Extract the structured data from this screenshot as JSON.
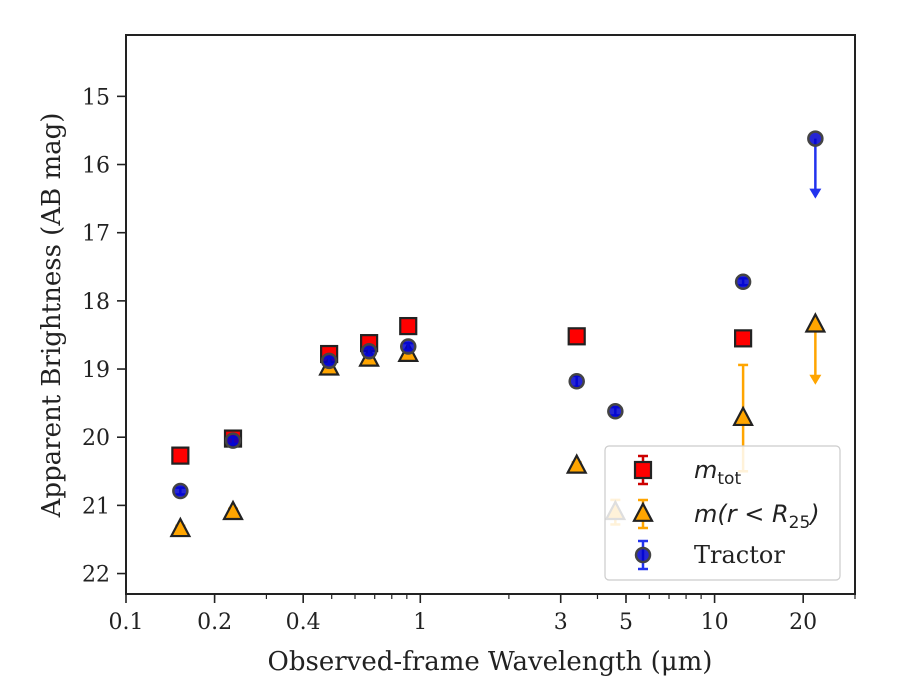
{
  "chart_data": {
    "type": "scatter",
    "title": "",
    "xlabel": "Observed-frame Wavelength (μm)",
    "ylabel": "Apparent Brightness (AB mag)",
    "xscale": "log",
    "xlim": [
      0.1,
      30
    ],
    "ylim": [
      22.3,
      14.1
    ],
    "y_inverted": true,
    "xticks": [
      0.1,
      0.2,
      0.4,
      1,
      3,
      5,
      10,
      20
    ],
    "xtick_labels": [
      "0.1",
      "0.2",
      "0.4",
      "1",
      "3",
      "5",
      "10",
      "20"
    ],
    "yticks": [
      15,
      16,
      17,
      18,
      19,
      20,
      21,
      22
    ],
    "ytick_labels": [
      "15",
      "16",
      "17",
      "18",
      "19",
      "20",
      "21",
      "22"
    ],
    "legend_position": "lower-right",
    "series": [
      {
        "key": "mtot",
        "legend_main": "m",
        "legend_sub": "tot",
        "marker": "square",
        "color": "#ff0000",
        "edge": "#222222",
        "points": [
          {
            "x": 0.153,
            "y": 20.27,
            "err": 0.05
          },
          {
            "x": 0.231,
            "y": 20.02,
            "err": 0.05
          },
          {
            "x": 0.49,
            "y": 18.78,
            "err": 0.05
          },
          {
            "x": 0.67,
            "y": 18.62,
            "err": 0.05
          },
          {
            "x": 0.91,
            "y": 18.37,
            "err": 0.05
          },
          {
            "x": 3.4,
            "y": 18.52,
            "err": 0.05
          },
          {
            "x": 12.5,
            "y": 18.55,
            "err": 0.05
          }
        ]
      },
      {
        "key": "mr25",
        "legend_main": "m(r < R",
        "legend_sub": "25",
        "legend_end": ")",
        "marker": "triangle",
        "color": "#ffa500",
        "edge": "#222222",
        "points": [
          {
            "x": 0.153,
            "y": 21.35,
            "err": 0.05
          },
          {
            "x": 0.231,
            "y": 21.1,
            "err": 0.05
          },
          {
            "x": 0.49,
            "y": 18.98,
            "err": 0.05
          },
          {
            "x": 0.67,
            "y": 18.85,
            "err": 0.05
          },
          {
            "x": 0.91,
            "y": 18.78,
            "err": 0.05
          },
          {
            "x": 3.4,
            "y": 20.42,
            "err": 0.05
          },
          {
            "x": 4.6,
            "y": 21.1,
            "err": 0.18
          },
          {
            "x": 12.5,
            "y": 19.72,
            "err": 0.78
          },
          {
            "x": 22.0,
            "y": 18.35,
            "upper_limit": true
          }
        ]
      },
      {
        "key": "tractor",
        "legend_main": "Tractor",
        "marker": "circle",
        "color": "#0000cc",
        "edge": "#444444",
        "points": [
          {
            "x": 0.153,
            "y": 20.79,
            "err": 0.05
          },
          {
            "x": 0.231,
            "y": 20.05,
            "err": 0.05
          },
          {
            "x": 0.49,
            "y": 18.88,
            "err": 0.05
          },
          {
            "x": 0.67,
            "y": 18.74,
            "err": 0.05
          },
          {
            "x": 0.91,
            "y": 18.67,
            "err": 0.05
          },
          {
            "x": 3.4,
            "y": 19.18,
            "err": 0.08
          },
          {
            "x": 4.6,
            "y": 19.62,
            "err": 0.06
          },
          {
            "x": 12.5,
            "y": 17.72,
            "err": 0.05
          },
          {
            "x": 22.0,
            "y": 15.62,
            "upper_limit": true
          }
        ]
      }
    ]
  }
}
